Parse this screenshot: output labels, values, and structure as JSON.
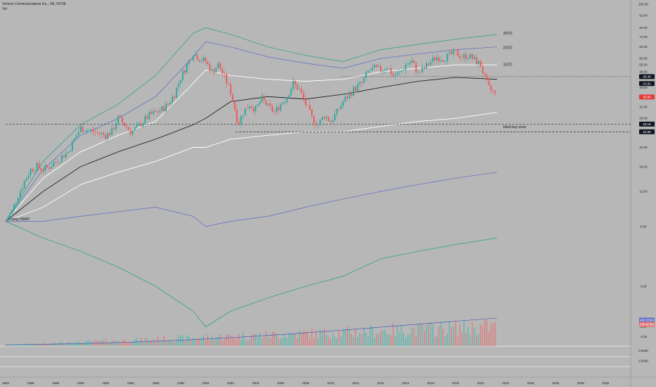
{
  "header": {
    "symbol_line": "Verizon Communications Inc., 1M, NYSE",
    "indicator": "Vol"
  },
  "chart_data": {
    "type": "candlestick",
    "title": "Verizon Communications Inc., 1M, NYSE",
    "y_scale": "log",
    "ylim": [
      2,
      105
    ],
    "xlim": [
      1984,
      2034
    ],
    "x_ticks": [
      "1984",
      "1986",
      "1988",
      "1990",
      "1992",
      "1994",
      "1996",
      "1998",
      "2000",
      "2002",
      "2004",
      "2006",
      "2008",
      "2010",
      "2012",
      "2014",
      "2016",
      "2018",
      "2020",
      "2022",
      "2024",
      "2026",
      "2028",
      "2030",
      "2032"
    ],
    "y_ticks_upper": [
      "105.00",
      "92.00",
      "80.00",
      "72.00",
      "64.00",
      "56.00",
      "52.00",
      "48.00",
      "40.00",
      "36.00",
      "32.00",
      "28.00",
      "24.00",
      "20.00",
      "16.00",
      "12.00",
      "8.00",
      "4.00",
      "0.00",
      "-4.00"
    ],
    "y_ticks_upper_values": [
      105,
      92,
      80,
      72,
      64,
      56,
      52,
      48,
      40,
      36,
      32,
      28,
      24,
      20,
      16,
      12,
      8,
      4
    ],
    "y_ticks_lower": [
      "0.0000",
      "0.0000"
    ],
    "price_tags": [
      {
        "label": "45.40",
        "value": 45.4,
        "color": "#131722"
      },
      {
        "label": "41.91",
        "value": 41.91,
        "color": "#131722"
      },
      {
        "label": "35.86",
        "value": 35.86,
        "color": "#e53935"
      },
      {
        "label": "26.19",
        "value": 26.19,
        "color": "#131722"
      },
      {
        "label": "23.96",
        "value": 23.96,
        "color": "#131722"
      },
      {
        "label": "460.553M",
        "value": null,
        "color": "#5d6bc4"
      },
      {
        "label": "258.663M",
        "value": null,
        "color": "#e57373"
      }
    ],
    "horizontal_levels": [
      {
        "value": 45.4,
        "style": "dotted",
        "x_start": 2010.8
      },
      {
        "value": 26.19,
        "style": "dashed",
        "x_start": 1984
      },
      {
        "value": 23.96,
        "style": "dashed",
        "x_start": 2002.4
      }
    ],
    "annotations": [
      {
        "text": "Listing VWAP",
        "x": 1984.2,
        "y": 8.6
      },
      {
        "text": "3STD",
        "x": 2023.8,
        "y": 74
      },
      {
        "text": "2STD",
        "x": 2023.8,
        "y": 62.5
      },
      {
        "text": "1STD",
        "x": 2023.8,
        "y": 51.5
      },
      {
        "text": "Ideal buy zone",
        "x": 2023.8,
        "y": 25
      }
    ],
    "price_path": {
      "x": [
        1984,
        1984.5,
        1985,
        1985.5,
        1986,
        1986.5,
        1987,
        1987.5,
        1988,
        1989,
        1989.5,
        1990,
        1991,
        1992,
        1992.5,
        1993,
        1993.5,
        1994,
        1994.5,
        1995,
        1995.5,
        1996,
        1996.5,
        1997,
        1997.5,
        1998,
        1998.5,
        1999,
        1999.5,
        2000,
        2000.5,
        2001,
        2001.5,
        2002,
        2002.3,
        2002.6,
        2003,
        2003.5,
        2004,
        2004.5,
        2005,
        2005.5,
        2006,
        2006.5,
        2007,
        2007.5,
        2008,
        2008.5,
        2009,
        2009.5,
        2010,
        2010.5,
        2011,
        2011.5,
        2012,
        2012.5,
        2013,
        2013.5,
        2014,
        2014.5,
        2015,
        2015.5,
        2016,
        2016.5,
        2017,
        2017.5,
        2018,
        2018.5,
        2019,
        2019.5,
        2020,
        2020.5,
        2021,
        2021.5,
        2022,
        2022.3,
        2022.6,
        2023,
        2023.3
      ],
      "close": [
        8.5,
        9.5,
        11.5,
        13.5,
        15.5,
        16,
        15.5,
        16,
        17,
        19,
        22,
        25,
        24,
        23,
        24,
        28,
        26,
        24,
        25,
        27,
        29,
        30,
        31,
        33,
        37,
        45,
        52,
        60,
        56,
        54,
        48,
        52,
        45,
        38,
        32,
        26,
        30,
        33,
        31,
        35,
        32,
        30,
        33,
        36,
        42,
        39,
        33,
        28,
        26,
        29,
        27,
        30,
        34,
        37,
        40,
        42,
        48,
        50,
        49,
        51,
        46,
        47,
        52,
        54,
        47,
        50,
        54,
        57,
        56,
        58,
        60,
        57,
        58,
        55,
        52,
        45,
        40,
        38,
        36
      ]
    },
    "vwap_bands": {
      "x": [
        1984,
        1987,
        1990,
        1993,
        1996,
        1999,
        2000,
        2002,
        2005,
        2008,
        2011,
        2014,
        2017,
        2020,
        2023.3
      ],
      "vwap": [
        8.5,
        12,
        16,
        19,
        22,
        26,
        28,
        34,
        36,
        35,
        37,
        40,
        43,
        45,
        44
      ],
      "upper1": [
        8.5,
        14,
        19,
        23,
        27,
        42,
        49,
        46,
        44,
        43,
        44,
        48,
        50,
        52,
        52
      ],
      "upper2": [
        8.5,
        15.5,
        23,
        28,
        36,
        57,
        68,
        64,
        57,
        53,
        50,
        56,
        59,
        62,
        64
      ],
      "upper3": [
        8.5,
        17,
        26,
        33,
        46,
        75,
        80,
        74,
        64,
        58,
        54,
        62,
        66,
        70,
        74
      ],
      "lower1": [
        8.5,
        10,
        13,
        15,
        17,
        20,
        20,
        22,
        23,
        24,
        24,
        25.5,
        27,
        28,
        30
      ],
      "lower2": [
        8.5,
        8.5,
        9,
        9.5,
        10,
        9,
        8,
        8.5,
        9,
        10,
        11,
        12,
        13,
        14,
        15
      ],
      "lower3": [
        8.5,
        7,
        6,
        5,
        4,
        3,
        2.5,
        3,
        3.5,
        4,
        4.5,
        5.5,
        6,
        6.5,
        7
      ]
    },
    "volume_profile_note": "volume histogram bars rising toward 2023"
  }
}
